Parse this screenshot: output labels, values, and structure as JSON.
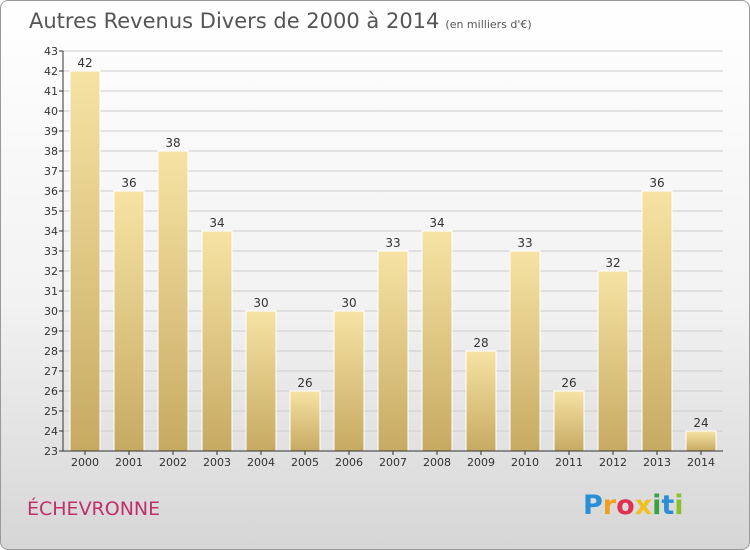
{
  "header": {
    "title": "Autres Revenus Divers de 2000 à 2014",
    "subtitle": "(en milliers d'€)"
  },
  "footer": {
    "commune": "ÉCHEVRONNE",
    "logo_letters": [
      {
        "char": "P",
        "color": "#2a8fd6"
      },
      {
        "char": "r",
        "color": "#f0a020"
      },
      {
        "char": "o",
        "color": "#e03050"
      },
      {
        "char": "x",
        "color": "#f0c020"
      },
      {
        "char": "i",
        "color": "#3aa040"
      },
      {
        "char": "t",
        "color": "#2a8fd6"
      },
      {
        "char": "i",
        "color": "#8ac030"
      }
    ]
  },
  "colors": {
    "bar_light": "#f6e3a4",
    "bar_dark": "#c7aa62",
    "grid": "#cccccc",
    "axis": "#333333"
  },
  "chart_data": {
    "type": "bar",
    "categories": [
      "2000",
      "2001",
      "2002",
      "2003",
      "2004",
      "2005",
      "2006",
      "2007",
      "2008",
      "2009",
      "2010",
      "2011",
      "2012",
      "2013",
      "2014"
    ],
    "values": [
      42,
      36,
      38,
      34,
      30,
      26,
      30,
      33,
      34,
      28,
      33,
      26,
      32,
      36,
      24
    ],
    "title": "Autres Revenus Divers de 2000 à 2014",
    "subtitle": "(en milliers d'€)",
    "xlabel": "",
    "ylabel": "",
    "ylim": [
      23,
      43
    ],
    "yticks": [
      23,
      24,
      25,
      26,
      27,
      28,
      29,
      30,
      31,
      32,
      33,
      34,
      35,
      36,
      37,
      38,
      39,
      40,
      41,
      42,
      43
    ],
    "grid": true,
    "data_labels": true
  }
}
